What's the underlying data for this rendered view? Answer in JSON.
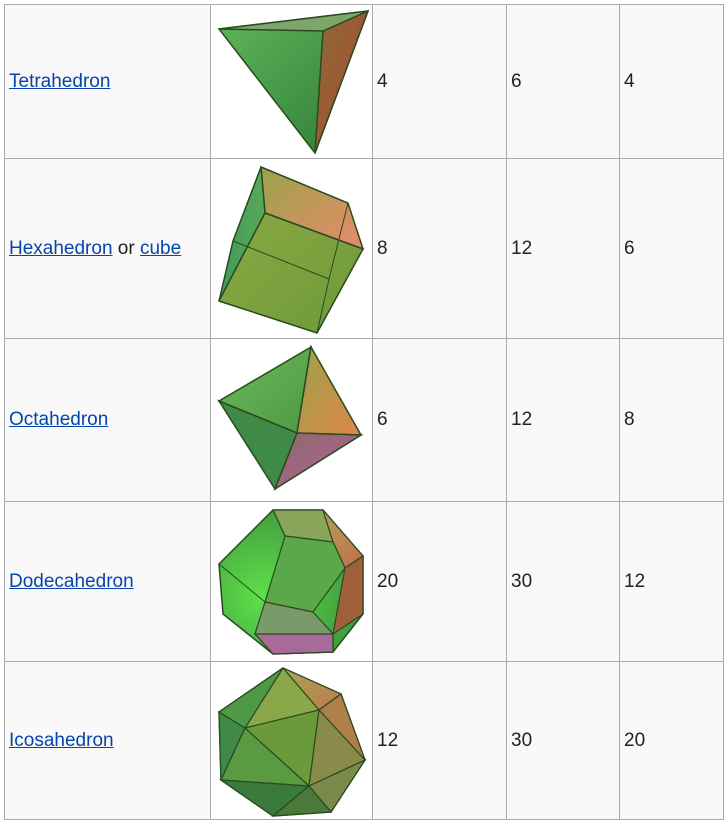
{
  "rows": [
    {
      "name": "Tetrahedron",
      "vertices": "4",
      "edges": "6",
      "faces": "4"
    },
    {
      "name": "Hexahedron",
      "connector": " or ",
      "alt": "cube",
      "vertices": "8",
      "edges": "12",
      "faces": "6"
    },
    {
      "name": "Octahedron",
      "vertices": "6",
      "edges": "12",
      "faces": "8"
    },
    {
      "name": "Dodecahedron",
      "vertices": "20",
      "edges": "30",
      "faces": "12"
    },
    {
      "name": "Icosahedron",
      "vertices": "12",
      "edges": "30",
      "faces": "20"
    }
  ],
  "icons": [
    "tetrahedron",
    "cube",
    "octahedron",
    "dodecahedron",
    "icosahedron"
  ],
  "colors": {
    "link": "#0645ad",
    "border": "#aaaaaa",
    "face_green": "#4f9a4a",
    "face_orange": "#c06a3a",
    "edge": "#2a4a20"
  }
}
